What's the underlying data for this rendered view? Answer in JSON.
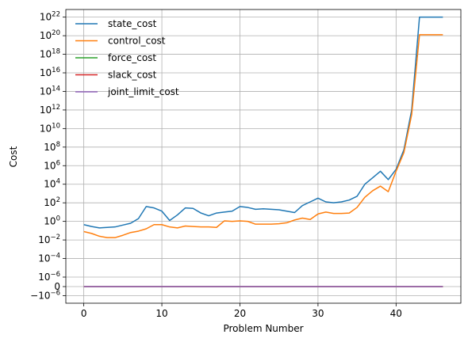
{
  "chart_data": {
    "type": "line",
    "title": "",
    "xlabel": "Problem Number",
    "ylabel": "Cost",
    "xlim": [
      -2.3,
      48.3
    ],
    "yscale": "symlog",
    "x_ticks": [
      {
        "value": 0,
        "label": "0"
      },
      {
        "value": 10,
        "label": "10"
      },
      {
        "value": 20,
        "label": "20"
      },
      {
        "value": 30,
        "label": "30"
      },
      {
        "value": 40,
        "label": "40"
      }
    ],
    "y_ticks": [
      {
        "value": "-1e-6",
        "base": "−10",
        "exp": "−6"
      },
      {
        "value": "0",
        "base": "0",
        "exp": ""
      },
      {
        "value": "1e-6",
        "base": "10",
        "exp": "−6"
      },
      {
        "value": "1e-4",
        "base": "10",
        "exp": "−4"
      },
      {
        "value": "1e-2",
        "base": "10",
        "exp": "−2"
      },
      {
        "value": "1e0",
        "base": "10",
        "exp": "0"
      },
      {
        "value": "1e2",
        "base": "10",
        "exp": "2"
      },
      {
        "value": "1e4",
        "base": "10",
        "exp": "4"
      },
      {
        "value": "1e6",
        "base": "10",
        "exp": "6"
      },
      {
        "value": "1e8",
        "base": "10",
        "exp": "8"
      },
      {
        "value": "1e10",
        "base": "10",
        "exp": "10"
      },
      {
        "value": "1e12",
        "base": "10",
        "exp": "12"
      },
      {
        "value": "1e14",
        "base": "10",
        "exp": "14"
      },
      {
        "value": "1e16",
        "base": "10",
        "exp": "16"
      },
      {
        "value": "1e18",
        "base": "10",
        "exp": "18"
      },
      {
        "value": "1e20",
        "base": "10",
        "exp": "20"
      },
      {
        "value": "1e22",
        "base": "10",
        "exp": "22"
      }
    ],
    "grid": true,
    "legend_position": "top-left",
    "x": [
      0,
      1,
      2,
      3,
      4,
      5,
      6,
      7,
      8,
      9,
      10,
      11,
      12,
      13,
      14,
      15,
      16,
      17,
      18,
      19,
      20,
      21,
      22,
      23,
      24,
      25,
      26,
      27,
      28,
      29,
      30,
      31,
      32,
      33,
      34,
      35,
      36,
      37,
      38,
      39,
      40,
      41,
      42,
      43,
      44,
      45,
      46
    ],
    "series": [
      {
        "name": "state_cost",
        "color": "#1f77b4",
        "log10_values": [
          -0.35,
          -0.55,
          -0.7,
          -0.65,
          -0.6,
          -0.4,
          -0.2,
          0.3,
          1.6,
          1.45,
          1.1,
          0.1,
          0.7,
          1.45,
          1.4,
          0.9,
          0.6,
          0.9,
          1.0,
          1.1,
          1.6,
          1.5,
          1.3,
          1.35,
          1.3,
          1.25,
          1.1,
          0.95,
          1.7,
          2.1,
          2.5,
          2.1,
          2.0,
          2.1,
          2.3,
          2.7,
          4.0,
          4.7,
          5.4,
          4.5,
          5.6,
          7.7,
          12.0,
          22.0,
          22.0,
          22.0,
          22.0
        ]
      },
      {
        "name": "control_cost",
        "color": "#ff7f0e",
        "log10_values": [
          -1.1,
          -1.3,
          -1.6,
          -1.75,
          -1.75,
          -1.5,
          -1.2,
          -1.05,
          -0.8,
          -0.35,
          -0.35,
          -0.6,
          -0.7,
          -0.5,
          -0.55,
          -0.6,
          -0.6,
          -0.65,
          0.05,
          0.0,
          0.05,
          0.0,
          -0.3,
          -0.3,
          -0.3,
          -0.25,
          -0.15,
          0.15,
          0.35,
          0.2,
          0.8,
          1.0,
          0.85,
          0.85,
          0.9,
          1.5,
          2.6,
          3.3,
          3.8,
          3.2,
          5.4,
          7.4,
          11.5,
          20.1,
          20.1,
          20.1,
          20.1
        ]
      },
      {
        "name": "force_cost",
        "color": "#2ca02c",
        "constant": 0
      },
      {
        "name": "slack_cost",
        "color": "#d62728",
        "constant": 0
      },
      {
        "name": "joint_limit_cost",
        "color": "#9467bd",
        "constant": 0
      }
    ]
  }
}
